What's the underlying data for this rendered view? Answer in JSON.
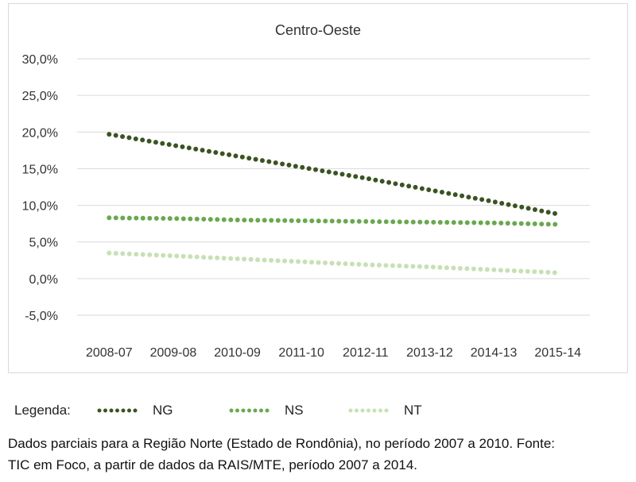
{
  "chart_data": {
    "type": "line",
    "title": "Centro-Oeste",
    "categories": [
      "2008-07",
      "2009-08",
      "2010-09",
      "2011-10",
      "2012-11",
      "2013-12",
      "2014-13",
      "2015-14"
    ],
    "ylim": [
      -5,
      30
    ],
    "y_ticks": [
      30,
      25,
      20,
      15,
      10,
      5,
      0,
      -5
    ],
    "y_tick_labels": [
      "30,0%",
      "25,0%",
      "20,0%",
      "15,0%",
      "10,0%",
      "5,0%",
      "0,0%",
      "-5,0%"
    ],
    "grid": true,
    "series": [
      {
        "name": "NG",
        "color": "#3b5323",
        "values": [
          19.7,
          18.2,
          16.7,
          15.2,
          13.7,
          12.1,
          10.5,
          8.8
        ]
      },
      {
        "name": "NS",
        "color": "#6aa84f",
        "values": [
          8.3,
          8.2,
          8.0,
          7.9,
          7.8,
          7.7,
          7.6,
          7.4
        ]
      },
      {
        "name": "NT",
        "color": "#c7e0b5",
        "values": [
          3.5,
          3.1,
          2.7,
          2.3,
          1.9,
          1.6,
          1.2,
          0.8
        ]
      }
    ]
  },
  "legend": {
    "title": "Legenda:"
  },
  "note": {
    "line1": "Dados parciais para a Região Norte (Estado de Rondônia), no período 2007 a 2010. Fonte:",
    "line2": "TIC em Foco, a partir de dados da RAIS/MTE, período 2007 a 2014."
  }
}
